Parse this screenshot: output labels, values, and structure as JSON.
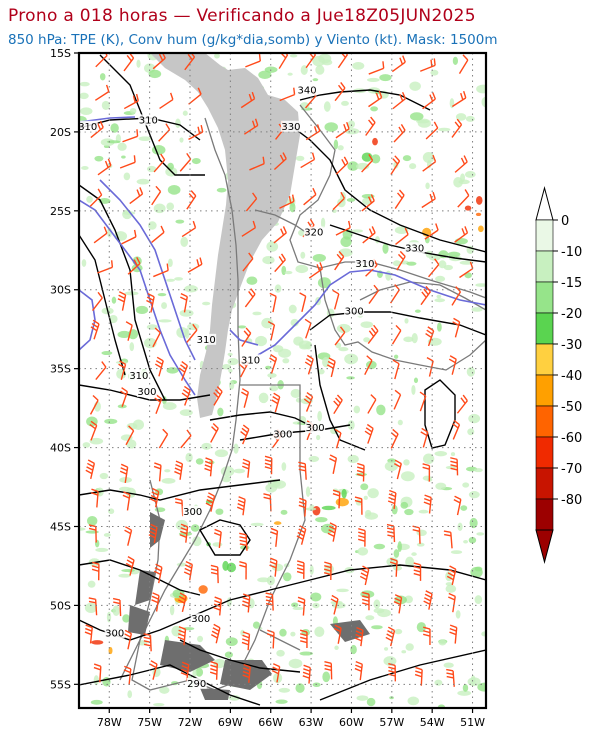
{
  "title": "Prono a 018 horas — Verificando a Jue18Z05JUN2025",
  "subtitle": "850 hPa: TPE (K), Conv hum (g/kg*dia,somb) y Viento (kt). Mask: 1500m",
  "colors": {
    "title": "#b0001a",
    "subtitle": "#1a72b8",
    "contour_black": "#000000",
    "contour_blue": "#6a6ad8",
    "mask": "#c6c6c6",
    "borders": "#777777",
    "wind_barbs": "#ff4a1a"
  },
  "lat_labels": [
    "15S",
    "20S",
    "25S",
    "30S",
    "35S",
    "40S",
    "45S",
    "50S",
    "55S"
  ],
  "lon_labels": [
    "78W",
    "75W",
    "72W",
    "69W",
    "66W",
    "63W",
    "60W",
    "57W",
    "54W",
    "51W"
  ],
  "colorbar": {
    "labels": [
      "0",
      "-10",
      "-15",
      "-20",
      "-30",
      "-40",
      "-50",
      "-60",
      "-70",
      "-80"
    ],
    "colors": [
      "#eaf8e6",
      "#c8f0c0",
      "#96e48a",
      "#5ad450",
      "#ffd040",
      "#ffa000",
      "#ff6400",
      "#f02a00",
      "#c81400",
      "#9c0000"
    ]
  },
  "contour_labels": [
    {
      "text": "340",
      "lon": -63.3,
      "lat": -17.5
    },
    {
      "text": "330",
      "lon": -64.5,
      "lat": -19.8
    },
    {
      "text": "310",
      "lon": -75.1,
      "lat": -19.4
    },
    {
      "text": "310",
      "lon": -79.6,
      "lat": -19.8
    },
    {
      "text": "320",
      "lon": -62.8,
      "lat": -26.5
    },
    {
      "text": "330",
      "lon": -55.3,
      "lat": -27.5
    },
    {
      "text": "310",
      "lon": -59.0,
      "lat": -28.5
    },
    {
      "text": "300",
      "lon": -59.8,
      "lat": -31.5
    },
    {
      "text": "310",
      "lon": -70.8,
      "lat": -33.3
    },
    {
      "text": "310",
      "lon": -67.5,
      "lat": -34.6
    },
    {
      "text": "310",
      "lon": -75.8,
      "lat": -35.6
    },
    {
      "text": "300",
      "lon": -75.2,
      "lat": -36.6
    },
    {
      "text": "300",
      "lon": -62.7,
      "lat": -38.9
    },
    {
      "text": "300",
      "lon": -65.1,
      "lat": -39.3
    },
    {
      "text": "300",
      "lon": -71.8,
      "lat": -44.2
    },
    {
      "text": "300",
      "lon": -71.2,
      "lat": -51.0
    },
    {
      "text": "300",
      "lon": -77.6,
      "lat": -51.9
    },
    {
      "text": "290",
      "lon": -71.5,
      "lat": -55.1
    }
  ]
}
